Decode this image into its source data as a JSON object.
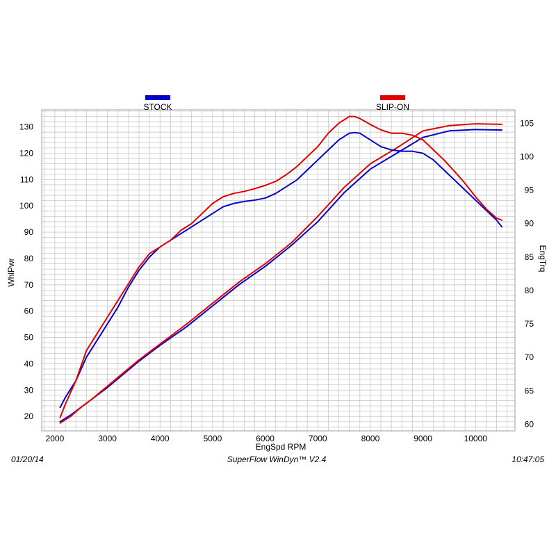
{
  "chart_data": {
    "type": "line",
    "xlabel": "EngSpd  RPM",
    "ylabel_left": "WhlPwr",
    "ylabel_right": "EngTrq",
    "x_ticks": [
      2000,
      3000,
      4000,
      5000,
      6000,
      7000,
      8000,
      9000,
      10000
    ],
    "y_left_ticks": [
      20,
      30,
      40,
      50,
      60,
      70,
      80,
      90,
      100,
      110,
      120,
      130
    ],
    "y_right_ticks": [
      60,
      65,
      70,
      75,
      80,
      85,
      90,
      95,
      100,
      105
    ],
    "xlim": [
      1750,
      10750
    ],
    "ylim_left": [
      14.5,
      136.5
    ],
    "ylim_right": [
      59,
      107
    ],
    "grid": true,
    "legend": {
      "placement": "top",
      "items": [
        {
          "name": "STOCK",
          "color": "#0000cc"
        },
        {
          "name": "SLIP-ON",
          "color": "#e00000"
        }
      ]
    },
    "series": [
      {
        "name": "STOCK",
        "measure": "WhlPwr",
        "axis": "left",
        "color": "#0000cc",
        "x": [
          2100,
          2300,
          2500,
          2700,
          3000,
          3300,
          3600,
          4000,
          4500,
          5000,
          5500,
          6000,
          6500,
          7000,
          7500,
          8000,
          8500,
          9000,
          9500,
          10000,
          10500
        ],
        "y": [
          18,
          20.5,
          23.5,
          26.5,
          31,
          36,
          41,
          47,
          54,
          62,
          70,
          77,
          85,
          94,
          105,
          114,
          120,
          126,
          128.5,
          129,
          128.8
        ]
      },
      {
        "name": "SLIP-ON",
        "measure": "WhlPwr",
        "axis": "left",
        "color": "#e00000",
        "x": [
          2100,
          2300,
          2500,
          2700,
          3000,
          3300,
          3600,
          4000,
          4500,
          5000,
          5500,
          6000,
          6500,
          7000,
          7500,
          8000,
          8500,
          9000,
          9500,
          10000,
          10500
        ],
        "y": [
          17.5,
          20,
          23.5,
          26.5,
          31.5,
          36.5,
          41.5,
          47.5,
          55,
          63,
          71,
          78,
          86,
          96,
          107,
          116,
          122,
          128.5,
          130.5,
          131.2,
          131
        ]
      },
      {
        "name": "STOCK",
        "measure": "EngTrq",
        "axis": "right",
        "color": "#0000cc",
        "x": [
          2100,
          2200,
          2400,
          2600,
          2800,
          3000,
          3200,
          3400,
          3600,
          3800,
          4000,
          4200,
          4400,
          4600,
          4800,
          5000,
          5200,
          5400,
          5600,
          5800,
          6000,
          6200,
          6400,
          6600,
          6800,
          7000,
          7200,
          7400,
          7600,
          7700,
          7800,
          8000,
          8200,
          8400,
          8600,
          8800,
          9000,
          9200,
          9400,
          9600,
          9800,
          10000,
          10200,
          10400,
          10500
        ],
        "y": [
          62.5,
          64,
          66.5,
          70,
          72.5,
          75,
          77.5,
          80.5,
          83,
          85,
          86.5,
          87.5,
          88.5,
          89.5,
          90.5,
          91.5,
          92.5,
          93,
          93.3,
          93.5,
          93.8,
          94.5,
          95.5,
          96.5,
          98,
          99.5,
          101,
          102.5,
          103.5,
          103.6,
          103.5,
          102.5,
          101.5,
          101,
          100.8,
          100.8,
          100.5,
          99.5,
          98,
          96.5,
          95,
          93.5,
          92,
          90.5,
          89.5
        ]
      },
      {
        "name": "SLIP-ON",
        "measure": "EngTrq",
        "axis": "right",
        "color": "#e00000",
        "x": [
          2100,
          2200,
          2400,
          2600,
          2800,
          3000,
          3200,
          3400,
          3600,
          3800,
          4000,
          4200,
          4400,
          4600,
          4800,
          5000,
          5200,
          5400,
          5600,
          5800,
          6000,
          6200,
          6400,
          6600,
          6800,
          7000,
          7200,
          7400,
          7600,
          7700,
          7800,
          8000,
          8200,
          8400,
          8600,
          8800,
          9000,
          9200,
          9400,
          9600,
          9800,
          10000,
          10200,
          10400,
          10500
        ],
        "y": [
          61,
          63,
          66.5,
          71,
          73.5,
          76,
          78.5,
          81,
          83.5,
          85.5,
          86.5,
          87.5,
          89,
          90,
          91.5,
          93,
          94,
          94.5,
          94.8,
          95.2,
          95.7,
          96.3,
          97.3,
          98.5,
          100,
          101.5,
          103.5,
          105,
          106,
          106,
          105.7,
          104.8,
          104,
          103.5,
          103.5,
          103.2,
          102.5,
          101,
          99.5,
          97.8,
          96,
          94,
          92.2,
          90.8,
          90.5
        ]
      }
    ]
  },
  "footer": {
    "date": "01/20/14",
    "software": "SuperFlow WinDyn™  V2.4",
    "time": "10:47:05"
  }
}
